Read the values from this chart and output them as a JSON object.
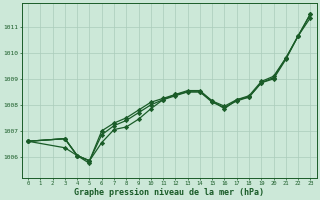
{
  "background_color": "#cce8d8",
  "grid_color": "#aaccbb",
  "line_color": "#1a5c28",
  "marker_color": "#1a5c28",
  "xlabel": "Graphe pression niveau de la mer (hPa)",
  "xlabel_fontsize": 6.0,
  "ylabel_values": [
    1006,
    1007,
    1008,
    1009,
    1010,
    1011
  ],
  "xlim": [
    -0.5,
    23.5
  ],
  "ylim": [
    1005.2,
    1011.9
  ],
  "xtick_labels": [
    "0",
    "1",
    "2",
    "3",
    "4",
    "5",
    "6",
    "7",
    "8",
    "9",
    "10",
    "11",
    "12",
    "13",
    "14",
    "15",
    "16",
    "17",
    "18",
    "19",
    "20",
    "21",
    "22",
    "23"
  ],
  "series": [
    {
      "x": [
        0,
        3,
        4,
        5
      ],
      "y": [
        1006.6,
        1006.7,
        1006.05,
        1005.75
      ]
    },
    {
      "x": [
        0,
        3,
        4,
        5,
        6,
        7,
        8,
        9,
        10,
        11,
        12,
        13,
        14,
        15,
        16,
        17,
        18,
        19,
        20,
        21,
        22,
        23
      ],
      "y": [
        1006.6,
        1006.35,
        1006.05,
        1005.85,
        1006.55,
        1007.05,
        1007.15,
        1007.45,
        1007.85,
        1008.2,
        1008.4,
        1008.5,
        1008.5,
        1008.15,
        1007.85,
        1008.2,
        1008.3,
        1008.85,
        1009.05,
        1009.8,
        1010.65,
        1011.35
      ]
    },
    {
      "x": [
        0,
        3,
        4,
        5,
        6,
        7,
        8,
        9,
        10,
        11,
        12,
        13,
        14,
        15,
        16,
        17,
        18,
        19,
        20,
        21,
        22,
        23
      ],
      "y": [
        1006.6,
        1006.7,
        1006.05,
        1005.85,
        1006.85,
        1007.2,
        1007.4,
        1007.7,
        1008.0,
        1008.2,
        1008.35,
        1008.5,
        1008.5,
        1008.1,
        1007.9,
        1008.15,
        1008.3,
        1008.85,
        1009.0,
        1009.75,
        1010.65,
        1011.5
      ]
    },
    {
      "x": [
        0,
        3,
        4,
        5,
        6,
        7,
        8,
        9,
        10,
        11,
        12,
        13,
        14,
        15,
        16,
        17,
        18,
        19,
        20,
        21,
        22,
        23
      ],
      "y": [
        1006.6,
        1006.7,
        1006.05,
        1005.85,
        1007.0,
        1007.3,
        1007.5,
        1007.8,
        1008.1,
        1008.25,
        1008.4,
        1008.55,
        1008.55,
        1008.15,
        1007.95,
        1008.2,
        1008.35,
        1008.9,
        1009.1,
        1009.8,
        1010.65,
        1011.5
      ]
    }
  ]
}
